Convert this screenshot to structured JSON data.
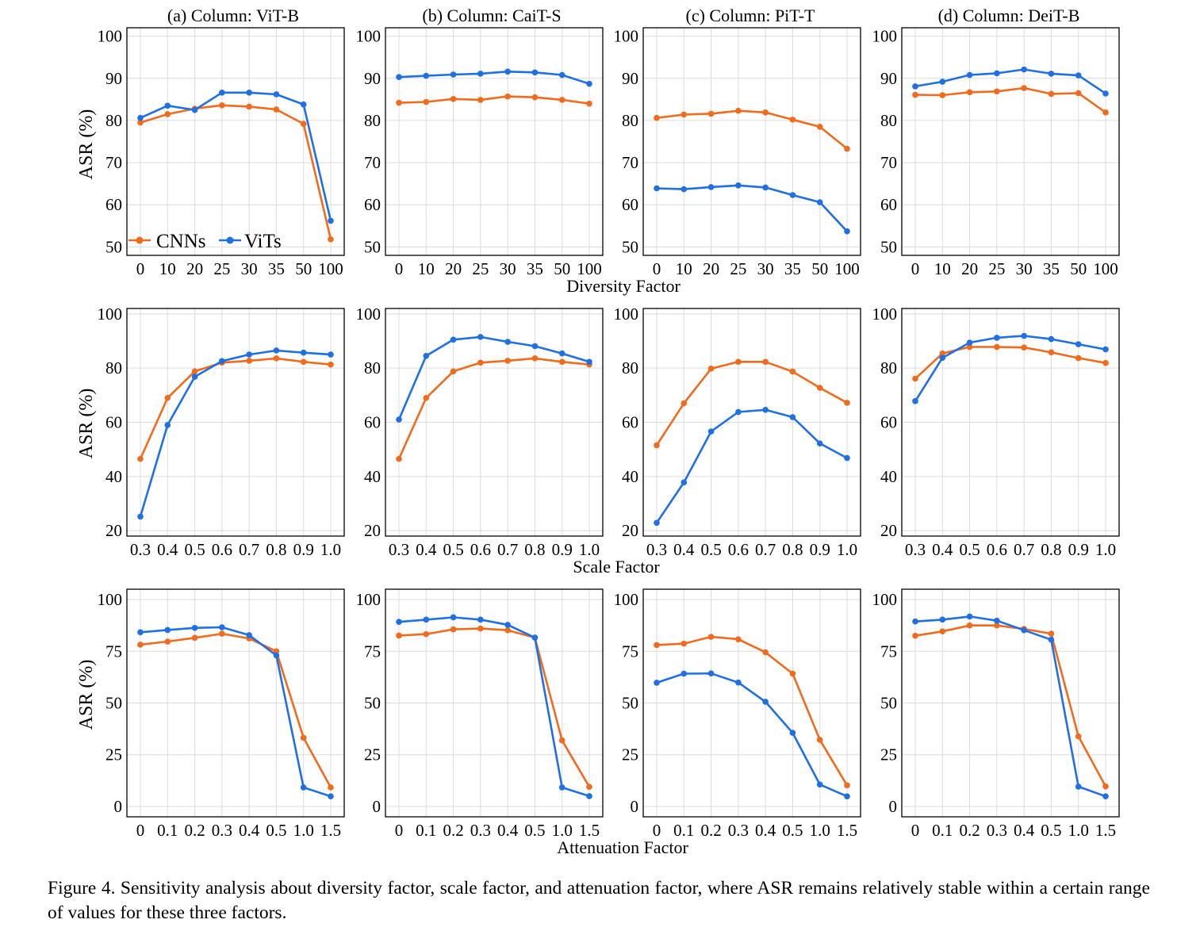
{
  "colors": {
    "cnn": "#f26b1d",
    "vit": "#1f6fe5",
    "grid": "#dcdcdc",
    "axis": "#000000"
  },
  "legend": {
    "cnn_label": "CNNs",
    "vit_label": "ViTs"
  },
  "column_titles": [
    "(a) Column: ViT-B",
    "(b) Column: CaiT-S",
    "(c) Column: PiT-T",
    "(d) Column: DeiT-B"
  ],
  "row_xlabels": [
    "Diversity Factor",
    "Scale Factor",
    "Attenuation Factor"
  ],
  "ylabel": "ASR (%)",
  "caption": "Figure 4.  Sensitivity analysis about diversity factor, scale factor, and attenuation factor, where ASR remains relatively stable within a certain range of values for these three factors.",
  "chart_data": [
    {
      "type": "line",
      "row": 0,
      "xlabel": "Diversity Factor",
      "ylabel": "ASR (%)",
      "categories": [
        "0",
        "10",
        "20",
        "25",
        "30",
        "35",
        "50",
        "100"
      ],
      "ylim": [
        48,
        102
      ],
      "yticks": [
        50,
        60,
        70,
        80,
        90,
        100
      ],
      "panels": [
        {
          "title": "(a) Column: ViT-B",
          "legend": true,
          "series": [
            {
              "name": "CNNs",
              "values": [
                79.5,
                81.5,
                82.8,
                83.6,
                83.3,
                82.6,
                79.2,
                51.8
              ]
            },
            {
              "name": "ViTs",
              "values": [
                80.6,
                83.5,
                82.5,
                86.6,
                86.6,
                86.2,
                83.8,
                56.2
              ]
            }
          ]
        },
        {
          "title": "(b) Column: CaiT-S",
          "series": [
            {
              "name": "CNNs",
              "values": [
                84.2,
                84.4,
                85.1,
                84.9,
                85.7,
                85.5,
                84.9,
                84.0
              ]
            },
            {
              "name": "ViTs",
              "values": [
                90.3,
                90.6,
                90.9,
                91.1,
                91.6,
                91.4,
                90.8,
                88.7
              ]
            }
          ]
        },
        {
          "title": "(c) Column: PiT-T",
          "series": [
            {
              "name": "CNNs",
              "values": [
                80.6,
                81.4,
                81.6,
                82.3,
                81.9,
                80.2,
                78.5,
                73.3
              ]
            },
            {
              "name": "ViTs",
              "values": [
                63.9,
                63.7,
                64.2,
                64.6,
                64.1,
                62.3,
                60.6,
                53.7
              ]
            }
          ]
        },
        {
          "title": "(d) Column: DeiT-B",
          "series": [
            {
              "name": "CNNs",
              "values": [
                86.1,
                86.0,
                86.7,
                86.9,
                87.7,
                86.3,
                86.5,
                81.9
              ]
            },
            {
              "name": "ViTs",
              "values": [
                88.1,
                89.2,
                90.8,
                91.2,
                92.1,
                91.1,
                90.7,
                86.4
              ]
            }
          ]
        }
      ]
    },
    {
      "type": "line",
      "row": 1,
      "xlabel": "Scale Factor",
      "ylabel": "ASR (%)",
      "categories": [
        "0.3",
        "0.4",
        "0.5",
        "0.6",
        "0.7",
        "0.8",
        "0.9",
        "1.0"
      ],
      "ylim": [
        18,
        102
      ],
      "yticks": [
        20,
        40,
        60,
        80,
        100
      ],
      "panels": [
        {
          "title": "(a) Column: ViT-B",
          "series": [
            {
              "name": "CNNs",
              "values": [
                46.5,
                69.0,
                78.8,
                82.0,
                82.7,
                83.6,
                82.3,
                81.3
              ]
            },
            {
              "name": "ViTs",
              "values": [
                25.2,
                59.0,
                76.8,
                82.6,
                85.0,
                86.5,
                85.7,
                85.0
              ]
            }
          ]
        },
        {
          "title": "(b) Column: CaiT-S",
          "series": [
            {
              "name": "CNNs",
              "values": [
                46.5,
                69.0,
                78.8,
                82.0,
                82.7,
                83.6,
                82.3,
                81.3
              ]
            },
            {
              "name": "ViTs",
              "values": [
                61.0,
                84.5,
                90.5,
                91.5,
                89.7,
                88.1,
                85.4,
                82.3
              ]
            }
          ]
        },
        {
          "title": "(c) Column: PiT-T",
          "series": [
            {
              "name": "CNNs",
              "values": [
                51.5,
                67.0,
                79.8,
                82.3,
                82.3,
                78.7,
                72.7,
                67.2
              ]
            },
            {
              "name": "ViTs",
              "values": [
                22.9,
                37.8,
                56.6,
                63.8,
                64.6,
                61.9,
                52.2,
                46.8
              ]
            }
          ]
        },
        {
          "title": "(d) Column: DeiT-B",
          "series": [
            {
              "name": "CNNs",
              "values": [
                76.1,
                85.4,
                87.8,
                87.8,
                87.6,
                85.8,
                83.7,
                81.9
              ]
            },
            {
              "name": "ViTs",
              "values": [
                67.8,
                83.8,
                89.4,
                91.2,
                91.9,
                90.7,
                88.8,
                86.9
              ]
            }
          ]
        }
      ]
    },
    {
      "type": "line",
      "row": 2,
      "xlabel": "Attenuation Factor",
      "ylabel": "ASR (%)",
      "categories": [
        "0",
        "0.1",
        "0.2",
        "0.3",
        "0.4",
        "0.5",
        "1.0",
        "1.5"
      ],
      "ylim": [
        -5,
        105
      ],
      "yticks": [
        0,
        25,
        50,
        75,
        100
      ],
      "panels": [
        {
          "title": "(a) Column: ViT-B",
          "series": [
            {
              "name": "CNNs",
              "values": [
                78.2,
                79.7,
                81.5,
                83.5,
                81.2,
                75.0,
                33.2,
                9.2
              ]
            },
            {
              "name": "ViTs",
              "values": [
                84.2,
                85.3,
                86.3,
                86.6,
                82.8,
                73.0,
                9.2,
                4.9
              ]
            }
          ]
        },
        {
          "title": "(b) Column: CaiT-S",
          "series": [
            {
              "name": "CNNs",
              "values": [
                82.6,
                83.3,
                85.6,
                86.0,
                85.2,
                81.6,
                31.9,
                9.5
              ]
            },
            {
              "name": "ViTs",
              "values": [
                89.2,
                90.3,
                91.4,
                90.3,
                87.8,
                81.6,
                9.2,
                5.0
              ]
            }
          ]
        },
        {
          "title": "(c) Column: PiT-T",
          "series": [
            {
              "name": "CNNs",
              "values": [
                78.0,
                78.7,
                82.0,
                80.8,
                74.5,
                64.2,
                32.2,
                10.2
              ]
            },
            {
              "name": "ViTs",
              "values": [
                59.8,
                64.2,
                64.3,
                59.9,
                50.6,
                35.6,
                10.6,
                4.9
              ]
            }
          ]
        },
        {
          "title": "(d) Column: DeiT-B",
          "series": [
            {
              "name": "CNNs",
              "values": [
                82.5,
                84.6,
                87.5,
                87.5,
                85.8,
                83.5,
                33.9,
                9.7
              ]
            },
            {
              "name": "ViTs",
              "values": [
                89.4,
                90.3,
                91.8,
                89.8,
                85.2,
                80.6,
                9.6,
                4.9
              ]
            }
          ]
        }
      ]
    }
  ]
}
